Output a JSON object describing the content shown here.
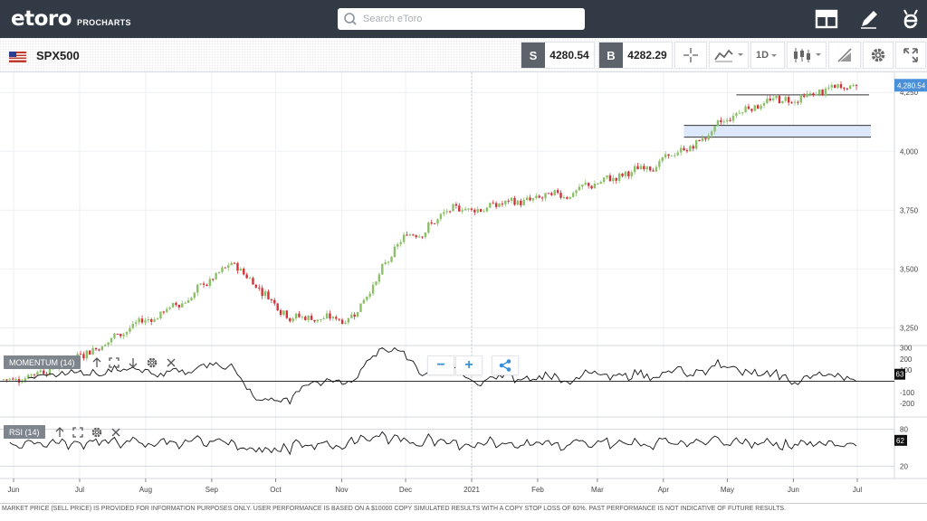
{
  "app": {
    "logo": "etoro",
    "sub": "PROCHARTS",
    "search": {
      "placeholder": "Search eToro"
    },
    "icons": [
      "layout-icon",
      "pencil-icon",
      "etoro-e-icon"
    ]
  },
  "instrument": {
    "symbol": "SPX500",
    "sell_tag": "S",
    "sell_price": "4280.54",
    "buy_tag": "B",
    "buy_price": "4282.29",
    "timeframe": "1D",
    "tools": [
      "crosshair-icon",
      "chart-type-icon",
      "timeframe-select",
      "candles-icon",
      "drawing-icon",
      "settings-icon",
      "fullscreen-icon"
    ]
  },
  "chart_data": [
    {
      "type": "candlestick",
      "title": "SPX500",
      "y_ticks": [
        "4,250",
        "4,000",
        "3,750",
        "3,500",
        "3,250"
      ],
      "y_tick_values": [
        4250,
        4000,
        3750,
        3500,
        3250
      ],
      "ylim": [
        3175,
        4320
      ],
      "last_price_label": "4,280.54",
      "last_price": 4280.54,
      "x_ticks": [
        "Jun",
        "Jul",
        "Aug",
        "Sep",
        "Oct",
        "Nov",
        "Dec",
        "2021",
        "Feb",
        "Mar",
        "Apr",
        "May",
        "Jun",
        "Jul"
      ],
      "x_tick_day": [
        0,
        31,
        62,
        93,
        123,
        154,
        184,
        215,
        246,
        274,
        305,
        335,
        366,
        396
      ],
      "start_value": 3030,
      "monthly_closes": [
        3100,
        3230,
        3350,
        3520,
        3300,
        3280,
        3640,
        3760,
        3780,
        3830,
        3910,
        4010,
        4200,
        4230,
        4290
      ],
      "grid": true,
      "annotations": {
        "resistance_line": 4240,
        "support_line": 4110,
        "zone": [
          4060,
          4110
        ]
      }
    },
    {
      "type": "line",
      "series": [
        {
          "name": "MOMENTUM (14)"
        }
      ],
      "y_ticks": [
        "300",
        "200",
        "100",
        "-100",
        "-200"
      ],
      "y_tick_values": [
        300,
        200,
        100,
        -100,
        -200
      ],
      "ylim": [
        -320,
        320
      ],
      "last_value_label": "63",
      "zero_line": 0
    },
    {
      "type": "line",
      "series": [
        {
          "name": "RSI (14)"
        }
      ],
      "y_ticks": [
        "80",
        "20"
      ],
      "y_tick_values": [
        80,
        20
      ],
      "ylim": [
        0,
        100
      ],
      "last_value_label": "62",
      "bands": [
        80,
        20
      ]
    }
  ],
  "footer": {
    "disclaimer": "MARKET PRICE (SELL PRICE) IS PROVIDED FOR INFORMATION PURPOSES ONLY. USER PERFORMANCE IS BASED ON A $10000 COPY SIMULATED RESULTS WITH A COPY STOP LOSS OF 60%. PAST PERFORMANCE IS NOT INDICATIVE OF FUTURE RESULTS."
  },
  "colors": {
    "topbar": "#323a45",
    "up": "#8cc068",
    "down": "#d0343a",
    "price_tag": "#4a90d9",
    "zone": "#dde8fb"
  }
}
